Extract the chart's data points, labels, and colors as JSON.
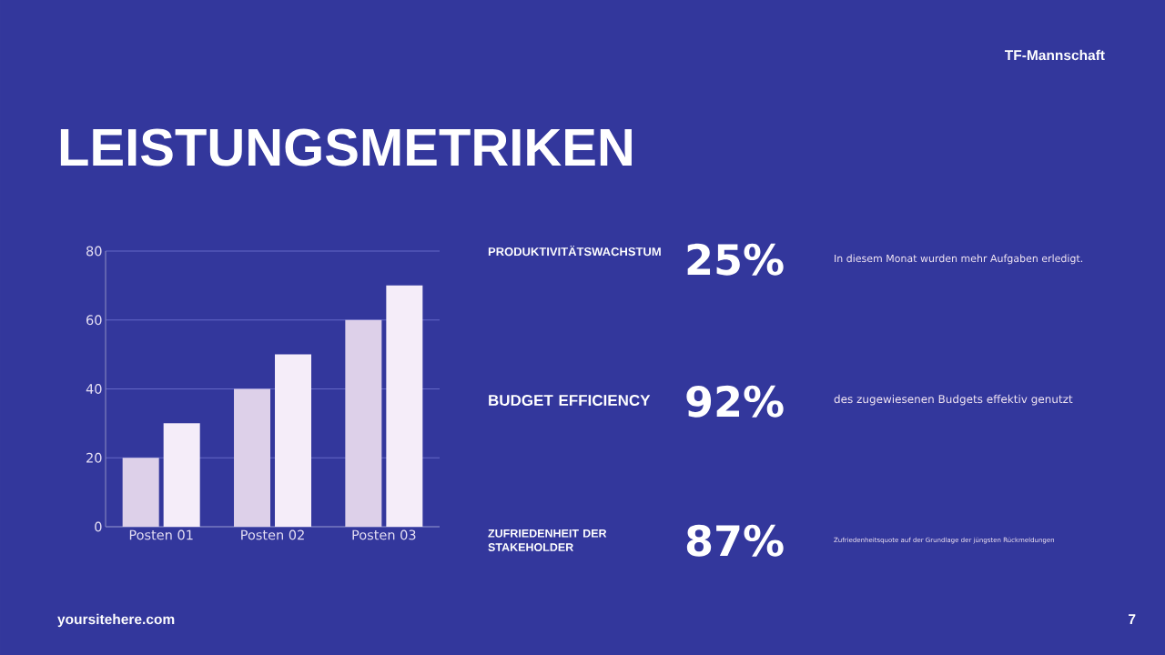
{
  "chart_data": [
    {
      "type": "bar",
      "title": "LEISTUNGSMETRIKEN",
      "categories": [
        "Posten 01",
        "Posten 02",
        "Posten 03"
      ],
      "series": [
        {
          "color": "#ddd0e9",
          "values": [
            20,
            40,
            60
          ]
        },
        {
          "color": "#f5edf9",
          "values": [
            30,
            50,
            70
          ]
        }
      ],
      "ylim": [
        0,
        80
      ],
      "yticks": [
        0,
        20,
        40,
        60,
        80
      ],
      "grid": "y",
      "annotations": [
        "TF-Mannschaft",
        "yoursitehere.com",
        "7"
      ]
    },
    {
      "type": "other",
      "annotations": [
        "PRODUKTIVITÄTSWACHSTUM",
        "25%",
        "In diesem Monat wurden mehr Aufgaben erledigt.",
        "BUDGET EFFICIENCY",
        "92%",
        "des zugewiesenen Budgets effektiv genutzt",
        "ZUFRIEDENHEIT DER STAKEHOLDER",
        "87%",
        "Zufriedenheitsquote auf der Grundlage der jüngsten Rückmeldungen"
      ]
    }
  ]
}
